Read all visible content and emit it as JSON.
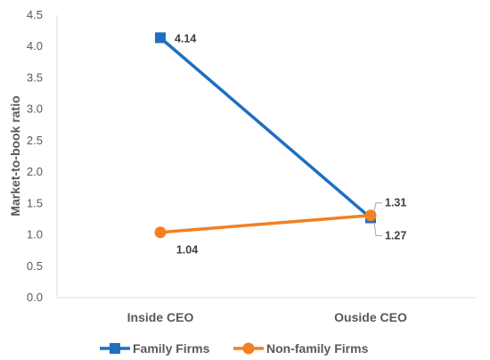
{
  "chart_data": {
    "type": "line",
    "categories": [
      "Inside CEO",
      "Ouside CEO"
    ],
    "series": [
      {
        "name": "Family Firms",
        "values": [
          4.14,
          1.27
        ],
        "labels": [
          "4.14",
          "1.27"
        ],
        "color": "#1F6FC0",
        "marker": "square"
      },
      {
        "name": "Non-family Firms",
        "values": [
          1.04,
          1.31
        ],
        "labels": [
          "1.04",
          "1.31"
        ],
        "color": "#F28024",
        "marker": "circle"
      }
    ],
    "title": "",
    "xlabel": "",
    "ylabel": "Market-to-book ratio",
    "ylim": [
      0,
      4.5
    ],
    "yticks": [
      "0.0",
      "0.5",
      "1.0",
      "1.5",
      "2.0",
      "2.5",
      "3.0",
      "3.5",
      "4.0",
      "4.5"
    ],
    "grid": false,
    "legend_position": "bottom"
  }
}
